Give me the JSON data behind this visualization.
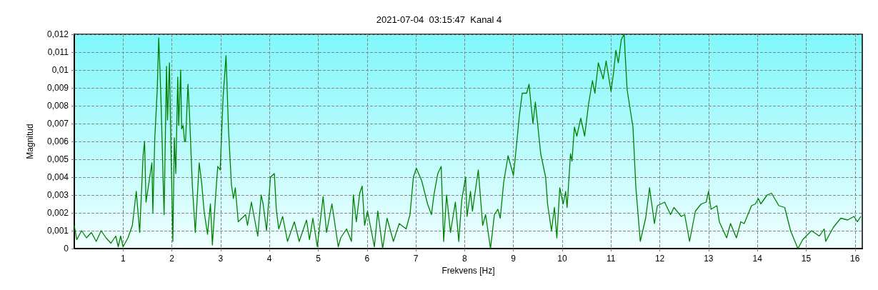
{
  "chart_data": {
    "type": "line",
    "title": "2021-07-04  03:15:47  Kanal 4",
    "xlabel": "Frekvens [Hz]",
    "ylabel": "Magnitud",
    "xlim": [
      0,
      16.15
    ],
    "xticks": [
      1,
      2,
      3,
      4,
      5,
      6,
      7,
      8,
      9,
      10,
      11,
      12,
      13,
      14,
      15,
      16
    ],
    "ylim": [
      0,
      0.012
    ],
    "yticks": [
      0,
      {
        "value": 0.001,
        "label": "0,001"
      },
      {
        "value": 0.002,
        "label": "0,002"
      },
      {
        "value": 0.003,
        "label": "0,003"
      },
      {
        "value": 0.004,
        "label": "0,004"
      },
      {
        "value": 0.005,
        "label": "0,005"
      },
      {
        "value": 0.006,
        "label": "0,006"
      },
      {
        "value": 0.007,
        "label": "0,007"
      },
      {
        "value": 0.008,
        "label": "0,008"
      },
      {
        "value": 0.009,
        "label": "0,009"
      },
      {
        "value": 0.01,
        "label": "0,01"
      },
      {
        "value": 0.011,
        "label": "0,011"
      },
      {
        "value": 0.012,
        "label": "0,012"
      }
    ],
    "grid": true,
    "marker": "none",
    "line_style": "solid",
    "series": [
      {
        "color": "#008000",
        "x": [
          0,
          0.05,
          0.15,
          0.25,
          0.35,
          0.45,
          0.55,
          0.65,
          0.75,
          0.85,
          0.9,
          0.95,
          1.0,
          1.1,
          1.19,
          1.27,
          1.34,
          1.41,
          1.44,
          1.47,
          1.59,
          1.61,
          1.65,
          1.7,
          1.73,
          1.76,
          1.78,
          1.84,
          1.89,
          1.91,
          1.95,
          1.98,
          2.02,
          2.05,
          2.08,
          2.12,
          2.14,
          2.18,
          2.2,
          2.23,
          2.26,
          2.28,
          2.33,
          2.36,
          2.42,
          2.48,
          2.56,
          2.61,
          2.66,
          2.73,
          2.79,
          2.83,
          2.89,
          2.94,
          2.99,
          3.05,
          3.11,
          3.16,
          3.22,
          3.26,
          3.3,
          3.36,
          3.51,
          3.55,
          3.63,
          3.76,
          3.83,
          3.87,
          3.94,
          4.02,
          4.1,
          4.14,
          4.19,
          4.27,
          4.37,
          4.51,
          4.61,
          4.76,
          4.82,
          4.89,
          4.98,
          5.1,
          5.17,
          5.28,
          5.41,
          5.46,
          5.58,
          5.68,
          5.72,
          5.78,
          5.85,
          5.9,
          5.95,
          6.01,
          6.15,
          6.22,
          6.32,
          6.41,
          6.54,
          6.66,
          6.8,
          6.88,
          6.95,
          7.01,
          7.12,
          7.24,
          7.32,
          7.37,
          7.45,
          7.52,
          7.57,
          7.63,
          7.71,
          7.81,
          7.88,
          7.94,
          8.02,
          8.05,
          8.12,
          8.16,
          8.28,
          8.37,
          8.43,
          8.53,
          8.61,
          8.68,
          8.73,
          8.8,
          8.89,
          9.0,
          9.06,
          9.12,
          9.18,
          9.27,
          9.32,
          9.4,
          9.45,
          9.56,
          9.66,
          9.7,
          9.78,
          9.84,
          9.89,
          9.95,
          10.02,
          10.07,
          10.1,
          10.17,
          10.2,
          10.25,
          10.3,
          10.38,
          10.46,
          10.54,
          10.62,
          10.67,
          10.74,
          10.84,
          10.9,
          11.0,
          11.05,
          11.1,
          11.15,
          11.21,
          11.27,
          11.29,
          11.33,
          11.45,
          11.51,
          11.6,
          11.71,
          11.79,
          11.89,
          11.95,
          12.1,
          12.22,
          12.29,
          12.44,
          12.51,
          12.61,
          12.73,
          12.85,
          12.95,
          13.0,
          13.05,
          13.17,
          13.22,
          13.37,
          13.45,
          13.57,
          13.66,
          13.73,
          13.88,
          13.96,
          14.02,
          14.07,
          14.2,
          14.29,
          14.44,
          14.56,
          14.68,
          14.83,
          14.93,
          15.0,
          15.11,
          15.27,
          15.37,
          15.4,
          15.56,
          15.71,
          15.85,
          15.98,
          16.05,
          16.12
        ],
        "values": [
          0.0013,
          0.0005,
          0.001,
          0.0006,
          0.0009,
          0.0004,
          0.001,
          0.0006,
          0.0003,
          0.0007,
          0.0001,
          0.0007,
          0.0001,
          0.0006,
          0.0013,
          0.0032,
          0.0009,
          0.0052,
          0.006,
          0.0026,
          0.0048,
          0.002,
          0.0062,
          0.0089,
          0.0118,
          0.0097,
          0.008,
          0.0019,
          0.0102,
          0.0072,
          0.0104,
          0.0058,
          0.0004,
          0.0062,
          0.0042,
          0.0096,
          0.0069,
          0.01,
          0.0067,
          0.0069,
          0.006,
          0.006,
          0.0092,
          0.0076,
          0.0035,
          0.0009,
          0.0048,
          0.0037,
          0.0021,
          0.0008,
          0.0025,
          0.0002,
          0.0027,
          0.0046,
          0.0044,
          0.0085,
          0.0108,
          0.0067,
          0.0036,
          0.0028,
          0.0034,
          0.0015,
          0.0019,
          0.0013,
          0.0026,
          0.0007,
          0.003,
          0.0025,
          0.001,
          0.004,
          0.0042,
          0.0022,
          0.0011,
          0.0018,
          0.0004,
          0.0015,
          0.0004,
          0.0016,
          0.0005,
          0.0017,
          0.0001,
          0.0029,
          0.0009,
          0.0025,
          0.0001,
          0.0006,
          0.0011,
          0.0004,
          0.003,
          0.0015,
          0.0031,
          0.0035,
          0.0013,
          0.0021,
          0.0001,
          0.0021,
          0.0,
          0.0017,
          0.0004,
          0.0014,
          0.0011,
          0.0019,
          0.004,
          0.0045,
          0.0038,
          0.0025,
          0.0019,
          0.003,
          0.0042,
          0.0046,
          0.0004,
          0.003,
          0.0009,
          0.0026,
          0.0004,
          0.0027,
          0.004,
          0.0018,
          0.0032,
          0.0021,
          0.0044,
          0.0013,
          0.0019,
          0.0,
          0.0019,
          0.0022,
          0.0017,
          0.0037,
          0.0052,
          0.0041,
          0.0057,
          0.0074,
          0.0087,
          0.0087,
          0.0092,
          0.007,
          0.0082,
          0.0053,
          0.004,
          0.0025,
          0.001,
          0.0023,
          0.0006,
          0.0034,
          0.0025,
          0.0032,
          0.0023,
          0.0053,
          0.0049,
          0.0068,
          0.0063,
          0.0073,
          0.0063,
          0.0081,
          0.0094,
          0.0087,
          0.0104,
          0.0095,
          0.0105,
          0.0088,
          0.0098,
          0.0111,
          0.0104,
          0.0117,
          0.012,
          0.0109,
          0.0089,
          0.0068,
          0.0034,
          0.0004,
          0.0017,
          0.0034,
          0.0014,
          0.0024,
          0.0026,
          0.0019,
          0.0023,
          0.0018,
          0.0019,
          0.0004,
          0.0021,
          0.0025,
          0.0026,
          0.0032,
          0.0022,
          0.0024,
          0.0015,
          0.0006,
          0.0014,
          0.0006,
          0.0015,
          0.0014,
          0.0024,
          0.0025,
          0.0028,
          0.0025,
          0.003,
          0.0031,
          0.0024,
          0.0023,
          0.001,
          0.0,
          0.0005,
          0.0007,
          0.001,
          0.0007,
          0.0011,
          0.0004,
          0.0012,
          0.0017,
          0.0016,
          0.0018,
          0.0015,
          0.0018
        ]
      }
    ]
  }
}
